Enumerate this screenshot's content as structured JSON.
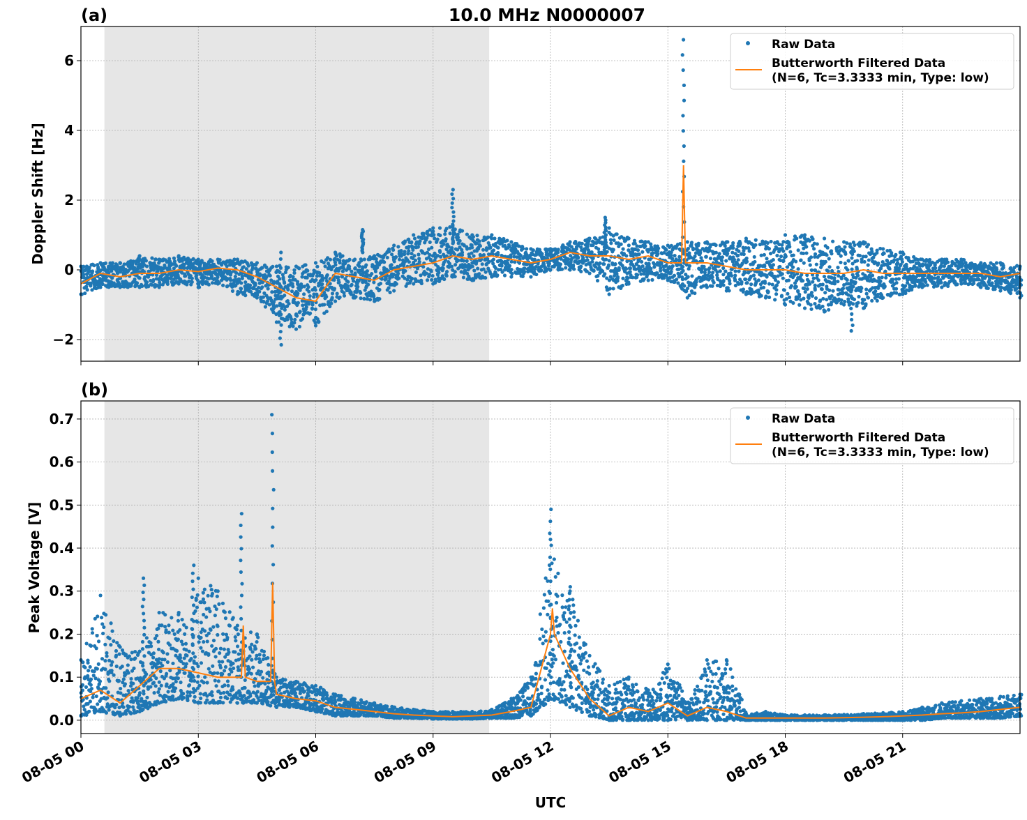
{
  "chart_data": [
    {
      "type": "scatter+line",
      "panel_label": "(a)",
      "title": "10.0 MHz N0000007",
      "ylabel": "Doppler Shift [Hz]",
      "xlabel": "",
      "ylim": [
        -2.62,
        6.98
      ],
      "yticks": [
        -2,
        0,
        2,
        4,
        6
      ],
      "ytick_labels": [
        "−2",
        "0",
        "2",
        "4",
        "6"
      ],
      "xlim": [
        "08-05 00:00",
        "08-06 00:00"
      ],
      "grid": true,
      "legend": "top-right",
      "shaded_span": [
        "08-05 00:36",
        "08-05 10:26"
      ],
      "x": [
        "08-05 00:00",
        "08-05 00:30",
        "08-05 01:00",
        "08-05 01:30",
        "08-05 02:00",
        "08-05 02:30",
        "08-05 03:00",
        "08-05 03:30",
        "08-05 04:00",
        "08-05 04:30",
        "08-05 05:00",
        "08-05 05:30",
        "08-05 06:00",
        "08-05 06:30",
        "08-05 07:00",
        "08-05 07:30",
        "08-05 08:00",
        "08-05 08:30",
        "08-05 09:00",
        "08-05 09:30",
        "08-05 10:00",
        "08-05 10:30",
        "08-05 11:00",
        "08-05 11:30",
        "08-05 12:00",
        "08-05 12:30",
        "08-05 13:00",
        "08-05 13:30",
        "08-05 14:00",
        "08-05 14:30",
        "08-05 15:00",
        "08-05 15:30",
        "08-05 16:00",
        "08-05 16:30",
        "08-05 17:00",
        "08-05 17:30",
        "08-05 18:00",
        "08-05 18:30",
        "08-05 19:00",
        "08-05 19:30",
        "08-05 20:00",
        "08-05 20:30",
        "08-05 21:00",
        "08-05 21:30",
        "08-05 22:00",
        "08-05 22:30",
        "08-05 23:00",
        "08-05 23:30",
        "08-06 00:00"
      ],
      "series": [
        {
          "name": "Raw Data",
          "kind": "scatter",
          "color": "#1f77b4",
          "min": [
            -0.7,
            -0.5,
            -0.5,
            -0.5,
            -0.5,
            -0.4,
            -0.5,
            -0.4,
            -0.7,
            -0.8,
            -1.5,
            -1.7,
            -1.6,
            -0.9,
            -0.8,
            -0.9,
            -0.6,
            -0.4,
            -0.4,
            -0.2,
            -0.3,
            -0.2,
            -0.2,
            -0.2,
            0.0,
            0.0,
            -0.1,
            -0.7,
            -0.4,
            -0.3,
            -0.3,
            -0.8,
            -0.5,
            -0.6,
            -0.7,
            -0.8,
            -1.0,
            -1.1,
            -1.2,
            -1.0,
            -1.1,
            -0.8,
            -0.7,
            -0.5,
            -0.5,
            -0.4,
            -0.5,
            -0.6,
            -0.8
          ],
          "max": [
            0.1,
            0.2,
            0.2,
            0.4,
            0.3,
            0.4,
            0.3,
            0.3,
            0.3,
            0.2,
            0.1,
            0.1,
            0.2,
            0.5,
            0.3,
            0.4,
            0.7,
            1.0,
            1.2,
            1.3,
            1.0,
            1.0,
            0.8,
            0.6,
            0.6,
            0.8,
            0.9,
            1.2,
            0.9,
            0.8,
            0.7,
            0.8,
            0.8,
            0.8,
            0.9,
            0.8,
            1.0,
            1.0,
            0.9,
            0.8,
            0.8,
            0.6,
            0.5,
            0.3,
            0.3,
            0.3,
            0.2,
            0.2,
            0.1
          ],
          "spikes": [
            {
              "x": "08-05 15:24",
              "y": 6.6
            },
            {
              "x": "08-05 09:30",
              "y": 2.3
            },
            {
              "x": "08-05 05:06",
              "y": -2.15
            },
            {
              "x": "08-05 19:42",
              "y": -1.75
            },
            {
              "x": "08-05 07:12",
              "y": 1.15
            },
            {
              "x": "08-05 13:24",
              "y": 1.5
            }
          ]
        },
        {
          "name": "Butterworth Filtered Data\n(N=6, Tc=3.3333 min, Type: low)",
          "kind": "line",
          "color": "#ff7f0e",
          "y": [
            -0.4,
            -0.1,
            -0.2,
            -0.1,
            -0.1,
            0.0,
            -0.05,
            0.05,
            0.0,
            -0.2,
            -0.5,
            -0.8,
            -0.9,
            -0.1,
            -0.2,
            -0.3,
            0.0,
            0.1,
            0.2,
            0.4,
            0.3,
            0.4,
            0.3,
            0.2,
            0.3,
            0.5,
            0.4,
            0.4,
            0.3,
            0.4,
            0.2,
            0.2,
            0.2,
            0.1,
            0.0,
            0.0,
            0.0,
            -0.1,
            -0.1,
            -0.1,
            0.0,
            -0.1,
            -0.1,
            -0.1,
            -0.1,
            -0.1,
            -0.1,
            -0.2,
            -0.1
          ],
          "spikes": [
            {
              "x": "08-05 15:24",
              "y": 3.0
            }
          ]
        }
      ]
    },
    {
      "type": "scatter+line",
      "panel_label": "(b)",
      "title": "",
      "ylabel": "Peak Voltage [V]",
      "xlabel": "UTC",
      "ylim": [
        -0.031,
        0.742
      ],
      "yticks": [
        0,
        0.1,
        0.2,
        0.3,
        0.4,
        0.5,
        0.6,
        0.7
      ],
      "ytick_labels": [
        "0.0",
        "0.1",
        "0.2",
        "0.3",
        "0.4",
        "0.5",
        "0.6",
        "0.7"
      ],
      "xlim": [
        "08-05 00:00",
        "08-06 00:00"
      ],
      "grid": true,
      "legend": "top-right",
      "shaded_span": [
        "08-05 00:36",
        "08-05 10:26"
      ],
      "xticks": [
        "08-05 00:00",
        "08-05 03:00",
        "08-05 06:00",
        "08-05 09:00",
        "08-05 12:00",
        "08-05 15:00",
        "08-05 18:00",
        "08-05 21:00"
      ],
      "xtick_labels": [
        "08-05 00",
        "08-05 03",
        "08-05 06",
        "08-05 09",
        "08-05 12",
        "08-05 15",
        "08-05 18",
        "08-05 21"
      ],
      "series": [
        {
          "name": "Raw Data",
          "kind": "scatter",
          "color": "#1f77b4",
          "min": [
            0.01,
            0.02,
            0.01,
            0.02,
            0.04,
            0.05,
            0.04,
            0.04,
            0.04,
            0.04,
            0.03,
            0.03,
            0.02,
            0.01,
            0.01,
            0.01,
            0.005,
            0.005,
            0.003,
            0.003,
            0.003,
            0.005,
            0.005,
            0.01,
            0.05,
            0.03,
            0.01,
            0,
            0,
            0,
            0,
            0,
            0,
            0,
            0,
            0,
            0,
            0,
            0,
            0,
            0,
            0,
            0,
            0,
            0.005,
            0.005,
            0.005,
            0.005,
            0.01
          ],
          "max": [
            0.14,
            0.29,
            0.17,
            0.16,
            0.25,
            0.25,
            0.33,
            0.3,
            0.22,
            0.2,
            0.1,
            0.09,
            0.08,
            0.06,
            0.05,
            0.04,
            0.03,
            0.025,
            0.02,
            0.02,
            0.02,
            0.025,
            0.05,
            0.1,
            0.42,
            0.3,
            0.15,
            0.08,
            0.1,
            0.07,
            0.13,
            0.04,
            0.14,
            0.14,
            0.015,
            0.02,
            0.012,
            0.012,
            0.012,
            0.013,
            0.015,
            0.017,
            0.02,
            0.03,
            0.04,
            0.045,
            0.05,
            0.055,
            0.06
          ],
          "spikes": [
            {
              "x": "08-05 04:06",
              "y": 0.48
            },
            {
              "x": "08-05 04:54",
              "y": 0.71
            },
            {
              "x": "08-05 12:00",
              "y": 0.49
            },
            {
              "x": "08-05 02:52",
              "y": 0.36
            },
            {
              "x": "08-05 01:36",
              "y": 0.33
            },
            {
              "x": "08-05 12:30",
              "y": 0.31
            }
          ]
        },
        {
          "name": "Butterworth Filtered Data\n(N=6, Tc=3.3333 min, Type: low)",
          "kind": "line",
          "color": "#ff7f0e",
          "y": [
            0.05,
            0.07,
            0.04,
            0.08,
            0.12,
            0.12,
            0.11,
            0.1,
            0.1,
            0.09,
            0.06,
            0.05,
            0.045,
            0.03,
            0.025,
            0.02,
            0.015,
            0.012,
            0.01,
            0.008,
            0.01,
            0.012,
            0.02,
            0.03,
            0.2,
            0.12,
            0.05,
            0.01,
            0.03,
            0.02,
            0.04,
            0.01,
            0.03,
            0.02,
            0.005,
            0.005,
            0.005,
            0.005,
            0.005,
            0.006,
            0.007,
            0.008,
            0.01,
            0.012,
            0.015,
            0.017,
            0.02,
            0.025,
            0.03
          ],
          "spikes": [
            {
              "x": "08-05 04:54",
              "y": 0.32
            },
            {
              "x": "08-05 04:09",
              "y": 0.22
            },
            {
              "x": "08-05 12:03",
              "y": 0.26
            }
          ]
        }
      ]
    }
  ],
  "legend": {
    "raw": "Raw Data",
    "filtered_line1": "Butterworth Filtered Data",
    "filtered_line2": "(N=6, Tc=3.3333 min, Type: low)"
  }
}
